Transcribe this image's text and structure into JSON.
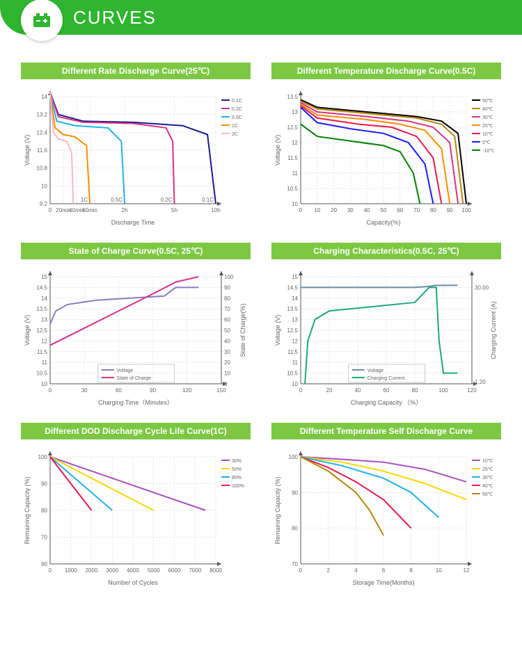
{
  "header": {
    "title": "CURVES"
  },
  "colors": {
    "green_header": "#2fb52f",
    "panel_title_bg": "#7cc842",
    "axis": "#555",
    "grid": "#ccc",
    "text": "#666"
  },
  "panels": {
    "rate_discharge": {
      "title": "Different Rate Discharge Curve(25℃)",
      "type": "line",
      "xlabel": "Discharge Time",
      "ylabel": "Voltage (V)",
      "ylim": [
        9.2,
        14.0
      ],
      "yticks": [
        9.2,
        10.0,
        10.8,
        11.6,
        12.4,
        13.2,
        14.0
      ],
      "xtick_labels": [
        "0",
        "20min",
        "40min",
        "60min",
        "2h",
        "5h",
        "10h"
      ],
      "xtick_positions": [
        0,
        0.08,
        0.16,
        0.24,
        0.45,
        0.75,
        1.0
      ],
      "label_fontsize": 9,
      "tick_fontsize": 8,
      "line_width": 2,
      "series": [
        {
          "label": "0.1C",
          "color": "#1a1a8a",
          "data": [
            [
              0,
              14.2
            ],
            [
              0.05,
              13.2
            ],
            [
              0.2,
              12.9
            ],
            [
              0.5,
              12.85
            ],
            [
              0.8,
              12.7
            ],
            [
              0.95,
              12.3
            ],
            [
              1.0,
              9.2
            ]
          ],
          "marker_x": 1.0,
          "marker_label": "0.1C"
        },
        {
          "label": "0.2C",
          "color": "#d63384",
          "data": [
            [
              0,
              14.2
            ],
            [
              0.05,
              13.1
            ],
            [
              0.2,
              12.85
            ],
            [
              0.5,
              12.8
            ],
            [
              0.7,
              12.6
            ],
            [
              0.74,
              12.0
            ],
            [
              0.75,
              9.2
            ]
          ],
          "marker_x": 0.75,
          "marker_label": "0.2C"
        },
        {
          "label": "0.5C",
          "color": "#20b2e6",
          "data": [
            [
              0,
              14.2
            ],
            [
              0.04,
              12.9
            ],
            [
              0.15,
              12.7
            ],
            [
              0.35,
              12.6
            ],
            [
              0.43,
              12.0
            ],
            [
              0.45,
              9.2
            ]
          ],
          "marker_x": 0.45,
          "marker_label": "0.5C"
        },
        {
          "label": "1C",
          "color": "#ff8c00",
          "data": [
            [
              0,
              14.2
            ],
            [
              0.03,
              12.6
            ],
            [
              0.08,
              12.3
            ],
            [
              0.15,
              12.2
            ],
            [
              0.22,
              11.8
            ],
            [
              0.24,
              9.2
            ]
          ],
          "marker_x": 0.24,
          "marker_label": "1C"
        },
        {
          "label": "2C",
          "color": "#ffb6c1",
          "data": [
            [
              0,
              14.2
            ],
            [
              0.02,
              12.4
            ],
            [
              0.05,
              12.1
            ],
            [
              0.1,
              12.0
            ],
            [
              0.13,
              11.5
            ],
            [
              0.14,
              9.2
            ]
          ]
        }
      ],
      "legend_pos": "right"
    },
    "temp_discharge": {
      "title": "Different Temperature Discharge Curve(0.5C)",
      "type": "line",
      "xlabel": "Capacity(%)",
      "ylabel": "Voltage (V)",
      "ylim": [
        10.0,
        13.5
      ],
      "yticks": [
        10.0,
        10.5,
        11.0,
        11.5,
        12.0,
        12.5,
        13.0,
        13.5
      ],
      "xlim": [
        0,
        100
      ],
      "xticks": [
        0,
        10,
        20,
        30,
        40,
        50,
        60,
        70,
        80,
        90,
        100
      ],
      "label_fontsize": 9,
      "tick_fontsize": 8,
      "line_width": 2,
      "series": [
        {
          "label": "50℃",
          "color": "#000000",
          "data": [
            [
              0,
              13.4
            ],
            [
              10,
              13.15
            ],
            [
              40,
              13.0
            ],
            [
              70,
              12.85
            ],
            [
              85,
              12.7
            ],
            [
              95,
              12.3
            ],
            [
              100,
              10.0
            ]
          ]
        },
        {
          "label": "40℃",
          "color": "#b8860b",
          "data": [
            [
              0,
              13.35
            ],
            [
              10,
              13.1
            ],
            [
              40,
              12.95
            ],
            [
              70,
              12.8
            ],
            [
              85,
              12.6
            ],
            [
              93,
              12.2
            ],
            [
              98,
              10.0
            ]
          ]
        },
        {
          "label": "30℃",
          "color": "#d63384",
          "data": [
            [
              0,
              13.3
            ],
            [
              10,
              13.0
            ],
            [
              40,
              12.85
            ],
            [
              65,
              12.7
            ],
            [
              80,
              12.5
            ],
            [
              90,
              12.0
            ],
            [
              95,
              10.0
            ]
          ]
        },
        {
          "label": "20℃",
          "color": "#ff8c00",
          "data": [
            [
              0,
              13.25
            ],
            [
              10,
              12.9
            ],
            [
              40,
              12.75
            ],
            [
              60,
              12.6
            ],
            [
              75,
              12.4
            ],
            [
              85,
              11.8
            ],
            [
              90,
              10.0
            ]
          ]
        },
        {
          "label": "10℃",
          "color": "#e6194b",
          "data": [
            [
              0,
              13.2
            ],
            [
              10,
              12.8
            ],
            [
              35,
              12.6
            ],
            [
              55,
              12.5
            ],
            [
              70,
              12.2
            ],
            [
              80,
              11.5
            ],
            [
              85,
              10.0
            ]
          ]
        },
        {
          "label": "0℃",
          "color": "#1a1aff",
          "data": [
            [
              0,
              13.15
            ],
            [
              10,
              12.65
            ],
            [
              30,
              12.45
            ],
            [
              50,
              12.3
            ],
            [
              65,
              12.0
            ],
            [
              75,
              11.3
            ],
            [
              80,
              10.0
            ]
          ]
        },
        {
          "label": "-10℃",
          "color": "#008000",
          "data": [
            [
              0,
              12.6
            ],
            [
              10,
              12.2
            ],
            [
              30,
              12.05
            ],
            [
              50,
              11.9
            ],
            [
              60,
              11.7
            ],
            [
              68,
              11.0
            ],
            [
              72,
              10.0
            ]
          ]
        }
      ],
      "legend_pos": "right"
    },
    "soc": {
      "title": "State of Charge Curve(0.5C, 25℃)",
      "type": "line-dual",
      "xlabel": "Charging Time（Minutes）",
      "ylabel": "Voltage (V)",
      "ylabel2": "State of Charge(%)",
      "ylim": [
        10.0,
        15.0
      ],
      "yticks": [
        10.0,
        10.5,
        11.0,
        11.5,
        12.0,
        12.5,
        13.0,
        13.5,
        14.0,
        14.5,
        15.0
      ],
      "ylim2": [
        0,
        100
      ],
      "yticks2": [
        0,
        10,
        20,
        30,
        40,
        50,
        60,
        70,
        80,
        90,
        100
      ],
      "xlim": [
        0,
        150
      ],
      "xticks": [
        0,
        30,
        60,
        90,
        120,
        150
      ],
      "label_fontsize": 9,
      "tick_fontsize": 8,
      "line_width": 2,
      "series": [
        {
          "label": "Voltage",
          "color": "#8a7cbf",
          "axis": "y1",
          "data": [
            [
              0,
              12.8
            ],
            [
              5,
              13.4
            ],
            [
              15,
              13.7
            ],
            [
              40,
              13.9
            ],
            [
              70,
              14.0
            ],
            [
              100,
              14.1
            ],
            [
              110,
              14.5
            ],
            [
              130,
              14.5
            ]
          ]
        },
        {
          "label": "State of Charge",
          "color": "#d63384",
          "axis": "y2",
          "data": [
            [
              0,
              36
            ],
            [
              30,
              52
            ],
            [
              60,
              68
            ],
            [
              90,
              84
            ],
            [
              110,
              95
            ],
            [
              130,
              100
            ]
          ]
        }
      ],
      "legend_pos": "bottom-center"
    },
    "charging": {
      "title": "Charging Characteristics(0.5C, 25℃)",
      "type": "line-dual",
      "xlabel": "Charging Capacity （%）",
      "ylabel": "Voltage (V)",
      "ylabel2": "Charging Current (A)",
      "ylim": [
        10.0,
        15.0
      ],
      "yticks": [
        10.0,
        10.5,
        11.0,
        11.5,
        12.0,
        12.5,
        13.0,
        13.5,
        14.0,
        14.5,
        15.0
      ],
      "ylim2": [
        0,
        35
      ],
      "yticks2_labels": [
        "1.20",
        "30.00"
      ],
      "yticks2_positions": [
        0.02,
        0.9
      ],
      "xlim": [
        0,
        120
      ],
      "xticks": [
        0,
        20,
        40,
        60,
        80,
        100,
        120
      ],
      "label_fontsize": 9,
      "tick_fontsize": 8,
      "line_width": 2,
      "series": [
        {
          "label": "Voltage",
          "color": "#6b8ba4",
          "axis": "y1",
          "data": [
            [
              0,
              14.5
            ],
            [
              80,
              14.5
            ],
            [
              90,
              14.55
            ],
            [
              95,
              14.6
            ],
            [
              110,
              14.6
            ]
          ]
        },
        {
          "label": "Charging Current",
          "color": "#1fa67a",
          "axis": "y1",
          "data": [
            [
              3,
              10.0
            ],
            [
              5,
              12.0
            ],
            [
              10,
              13.0
            ],
            [
              20,
              13.4
            ],
            [
              50,
              13.6
            ],
            [
              80,
              13.8
            ],
            [
              90,
              14.5
            ],
            [
              95,
              14.5
            ],
            [
              97,
              12.0
            ],
            [
              100,
              10.5
            ],
            [
              110,
              10.5
            ]
          ]
        }
      ],
      "legend_pos": "bottom-center"
    },
    "dod_cycle": {
      "title": "Different DOD Discharge Cycle Life Curve(1C)",
      "type": "line",
      "xlabel": "Number of Cycles",
      "ylabel": "Remaining Capacity (%)",
      "ylim": [
        60,
        100
      ],
      "yticks": [
        60,
        70,
        80,
        90,
        100
      ],
      "xlim": [
        0,
        8000
      ],
      "xticks": [
        0,
        1000,
        2000,
        3000,
        4000,
        5000,
        6000,
        7000,
        8000
      ],
      "label_fontsize": 9,
      "tick_fontsize": 8,
      "line_width": 2,
      "series": [
        {
          "label": "30%",
          "color": "#aa4fbf",
          "data": [
            [
              0,
              100
            ],
            [
              7500,
              80
            ]
          ]
        },
        {
          "label": "50%",
          "color": "#ffd700",
          "data": [
            [
              0,
              100
            ],
            [
              5000,
              80
            ]
          ]
        },
        {
          "label": "80%",
          "color": "#20b2e6",
          "data": [
            [
              0,
              100
            ],
            [
              3000,
              80
            ]
          ]
        },
        {
          "label": "100%",
          "color": "#e6194b",
          "data": [
            [
              0,
              100
            ],
            [
              2000,
              80
            ]
          ]
        }
      ],
      "legend_pos": "right"
    },
    "self_discharge": {
      "title": "Different Temperature Self Discharge Curve",
      "type": "line",
      "xlabel": "Storage Time(Months)",
      "ylabel": "Remaining Capacity (%)",
      "ylim": [
        70,
        100
      ],
      "yticks": [
        70,
        80,
        90,
        100
      ],
      "xlim": [
        0,
        12
      ],
      "xticks": [
        0,
        2,
        4,
        6,
        8,
        10,
        12
      ],
      "label_fontsize": 9,
      "tick_fontsize": 8,
      "line_width": 2,
      "series": [
        {
          "label": "10℃",
          "color": "#aa4fbf",
          "data": [
            [
              0,
              100
            ],
            [
              3,
              99.3
            ],
            [
              6,
              98.5
            ],
            [
              9,
              96.5
            ],
            [
              12,
              93
            ]
          ]
        },
        {
          "label": "25℃",
          "color": "#ffd700",
          "data": [
            [
              0,
              100
            ],
            [
              3,
              98.5
            ],
            [
              6,
              96
            ],
            [
              9,
              92.5
            ],
            [
              12,
              88
            ]
          ]
        },
        {
          "label": "30℃",
          "color": "#20b2e6",
          "data": [
            [
              0,
              100
            ],
            [
              3,
              97.5
            ],
            [
              6,
              94
            ],
            [
              8,
              90
            ],
            [
              10,
              83
            ]
          ]
        },
        {
          "label": "40℃",
          "color": "#e6194b",
          "data": [
            [
              0,
              100
            ],
            [
              2,
              97
            ],
            [
              4,
              93
            ],
            [
              6,
              88
            ],
            [
              8,
              80
            ]
          ]
        },
        {
          "label": "50℃",
          "color": "#b8860b",
          "data": [
            [
              0,
              100
            ],
            [
              2,
              96
            ],
            [
              4,
              90
            ],
            [
              5,
              85
            ],
            [
              6,
              78
            ]
          ]
        }
      ],
      "legend_pos": "right"
    }
  }
}
